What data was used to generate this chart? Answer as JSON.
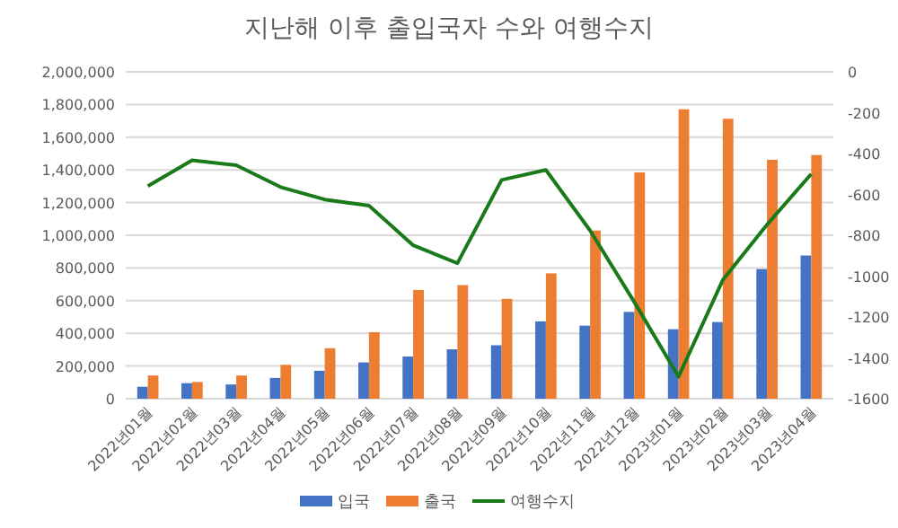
{
  "chart_data": {
    "type": "bar",
    "title": "지난해 이후 출입국자 수와 여행수지",
    "categories": [
      "2022년01월",
      "2022년02월",
      "2022년03월",
      "2022년04월",
      "2022년05월",
      "2022년06월",
      "2022년07월",
      "2022년08월",
      "2022년09월",
      "2022년10월",
      "2022년11월",
      "2022년12월",
      "2023년01월",
      "2023년02월",
      "2023년03월",
      "2023년04월"
    ],
    "series": [
      {
        "name": "입국",
        "color": "#4472c4",
        "values": [
          73000,
          95000,
          87000,
          127000,
          171000,
          222000,
          258000,
          302000,
          327000,
          473000,
          447000,
          531000,
          425000,
          469000,
          793000,
          876000
        ]
      },
      {
        "name": "출국",
        "color": "#ed7d31",
        "values": [
          142000,
          102000,
          142000,
          207000,
          309000,
          407000,
          665000,
          695000,
          611000,
          767000,
          1029000,
          1385000,
          1771000,
          1713000,
          1462000,
          1491000
        ]
      },
      {
        "name": "여행수지",
        "type": "line",
        "axis": "y2",
        "color": "#1a7a1a",
        "values": [
          -559,
          -433,
          -457,
          -564,
          -625,
          -655,
          -849,
          -937,
          -529,
          -480,
          -777,
          -1127,
          -1492,
          -1019,
          -748,
          -500
        ]
      }
    ],
    "ylim": [
      0,
      2000000
    ],
    "yticks": [
      {
        "value": 0,
        "label": "0"
      },
      {
        "value": 200000,
        "label": "200,000"
      },
      {
        "value": 400000,
        "label": "400,000"
      },
      {
        "value": 600000,
        "label": "600,000"
      },
      {
        "value": 800000,
        "label": "800,000"
      },
      {
        "value": 1000000,
        "label": "1,000,000"
      },
      {
        "value": 1200000,
        "label": "1,200,000"
      },
      {
        "value": 1400000,
        "label": "1,400,000"
      },
      {
        "value": 1600000,
        "label": "1,600,000"
      },
      {
        "value": 1800000,
        "label": "1,800,000"
      },
      {
        "value": 2000000,
        "label": "2,000,000"
      }
    ],
    "y2lim": [
      -1600,
      0
    ],
    "y2ticks": [
      0,
      -200,
      -400,
      -600,
      -800,
      -1000,
      -1200,
      -1400,
      -1600
    ],
    "grid": "y",
    "legend": "bottom"
  }
}
